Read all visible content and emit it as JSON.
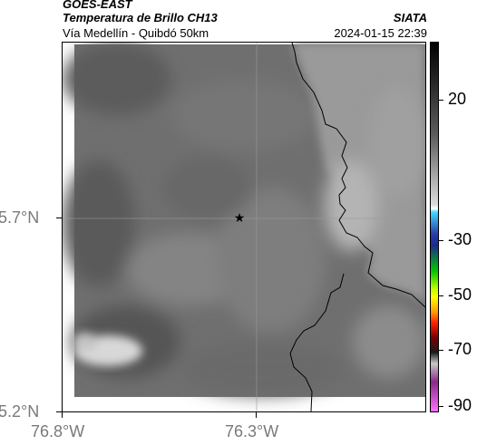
{
  "header": {
    "satellite": "GOES-EAST",
    "product": "Temperatura de Brillo CH13",
    "region": "Vía Medellín - Quibdó 50km",
    "organization": "SIATA",
    "datetime": "2024-01-15 22:39"
  },
  "map": {
    "lat_ticks": [
      "5.7°N",
      "5.2°N"
    ],
    "lon_ticks": [
      "76.8°W",
      "76.3°W"
    ],
    "marker": "star-marker",
    "colors": {
      "cloud_dark": "#4a4a4a",
      "cloud_mid": "#7a7a7a",
      "cloud_light": "#a8a8a8",
      "cloud_bright": "#d8d8d8",
      "border_line": "#000000"
    }
  },
  "colorbar": {
    "tick_labels": [
      "20",
      "-30",
      "-50",
      "-70",
      "-90"
    ],
    "units": "",
    "stops": [
      {
        "color": "#000000",
        "pos": 0
      },
      {
        "color": "#5c5c5c",
        "pos": 0.25
      },
      {
        "color": "#dcdcdc",
        "pos": 0.44
      },
      {
        "color": "#ffffff",
        "pos": 0.45
      },
      {
        "color": "#3fd9ff",
        "pos": 0.46
      },
      {
        "color": "#2a3aa8",
        "pos": 0.52
      },
      {
        "color": "#1b2b8c",
        "pos": 0.55
      },
      {
        "color": "#00c800",
        "pos": 0.62
      },
      {
        "color": "#c8ff00",
        "pos": 0.67
      },
      {
        "color": "#ffff00",
        "pos": 0.69
      },
      {
        "color": "#ff9a00",
        "pos": 0.73
      },
      {
        "color": "#ff2000",
        "pos": 0.76
      },
      {
        "color": "#7a0000",
        "pos": 0.8
      },
      {
        "color": "#1a1a1a",
        "pos": 0.84
      },
      {
        "color": "#c8c8c8",
        "pos": 0.87
      },
      {
        "color": "#8a2a8a",
        "pos": 0.92
      },
      {
        "color": "#ff70ff",
        "pos": 1
      }
    ]
  }
}
